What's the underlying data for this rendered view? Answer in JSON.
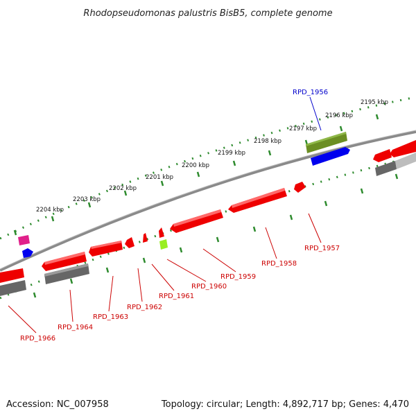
{
  "title": "Rhodopseudomonas palustris BisB5, complete genome",
  "footer": {
    "accession": "Accession: NC_007958",
    "summary": "Topology: circular; Length: 4,892,717 bp; Genes: 4,470"
  },
  "kbp_ticks": [
    "2195 kbp",
    "2196 kbp",
    "2197 kbp",
    "2198 kbp",
    "2199 kbp",
    "2200 kbp",
    "2201 kbp",
    "2202 kbp",
    "2203 kbp",
    "2204 kbp"
  ],
  "genes_forward": [
    {
      "label": "RPD_1956",
      "color": "#0000cc"
    }
  ],
  "genes_reverse": [
    {
      "label": "RPD_1957",
      "color": "#cc0000"
    },
    {
      "label": "RPD_1958",
      "color": "#cc0000"
    },
    {
      "label": "RPD_1959",
      "color": "#cc0000"
    },
    {
      "label": "RPD_1960",
      "color": "#cc0000"
    },
    {
      "label": "RPD_1961",
      "color": "#cc0000"
    },
    {
      "label": "RPD_1962",
      "color": "#cc0000"
    },
    {
      "label": "RPD_1963",
      "color": "#cc0000"
    },
    {
      "label": "RPD_1964",
      "color": "#cc0000"
    },
    {
      "label": "RPD_1966",
      "color": "#cc0000"
    }
  ],
  "colors": {
    "red": "#ee0000",
    "blue": "#0000ee",
    "olive": "#6b8e23",
    "gray": "#777777",
    "pink": "#e0208a",
    "lime": "#99ee22",
    "dots": "#228b22",
    "backbone": "#888888"
  }
}
